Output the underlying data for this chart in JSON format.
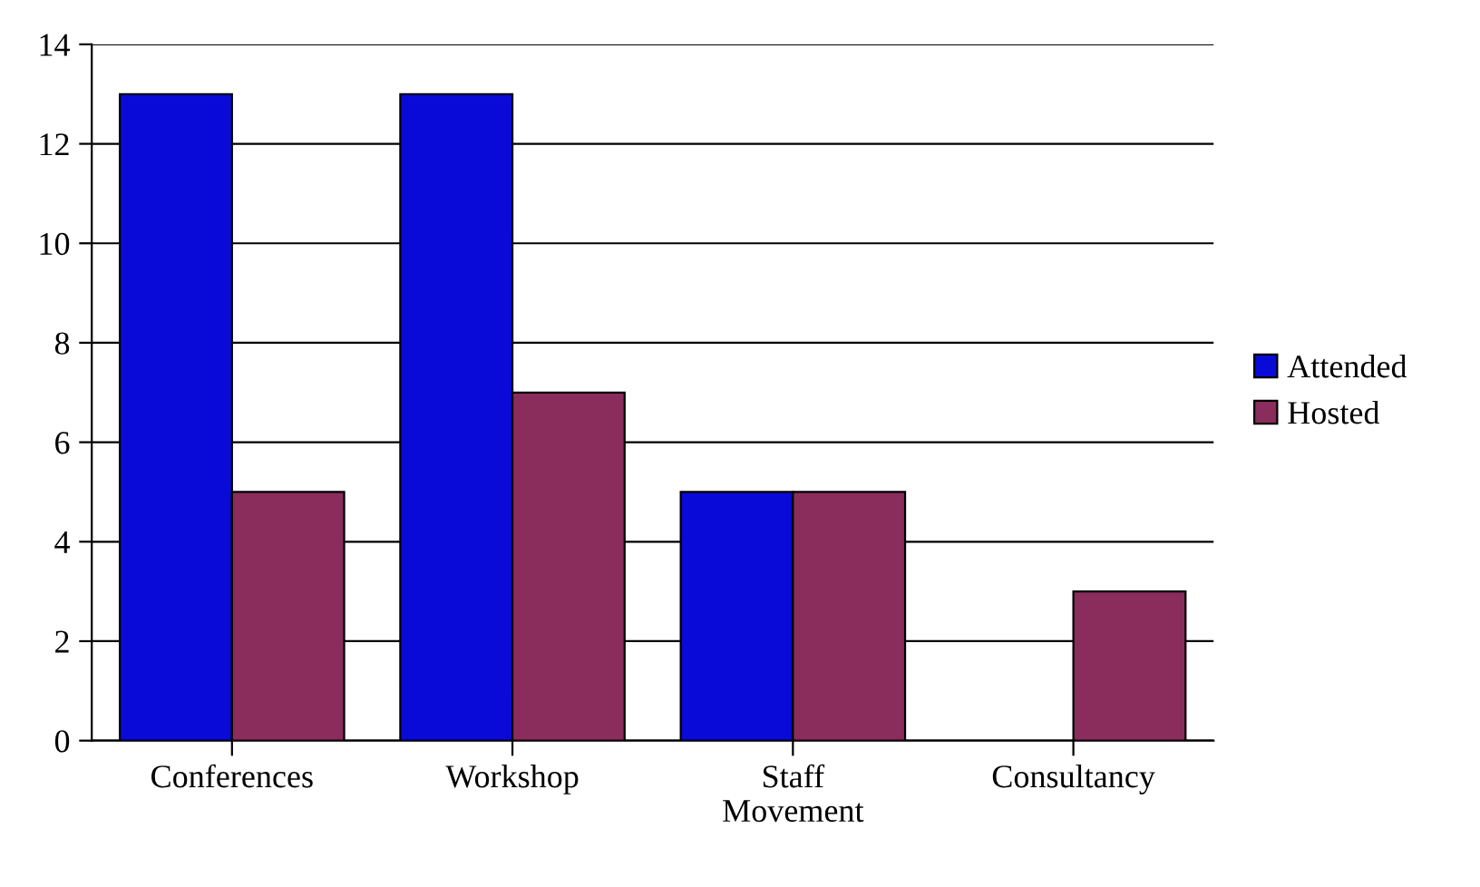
{
  "chart_data": {
    "type": "bar",
    "categories": [
      "Conferences",
      "Workshop",
      "Staff\nMovement",
      "Consultancy"
    ],
    "series": [
      {
        "name": "Attended",
        "color": "#0a0ad8",
        "values": [
          13,
          13,
          5,
          0
        ]
      },
      {
        "name": "Hosted",
        "color": "#8a2c5c",
        "values": [
          5,
          7,
          5,
          3
        ]
      }
    ],
    "ylim": [
      0,
      14
    ],
    "yticks": [
      0,
      2,
      4,
      6,
      8,
      10,
      12,
      14
    ],
    "grid": "y",
    "legend": "right"
  }
}
